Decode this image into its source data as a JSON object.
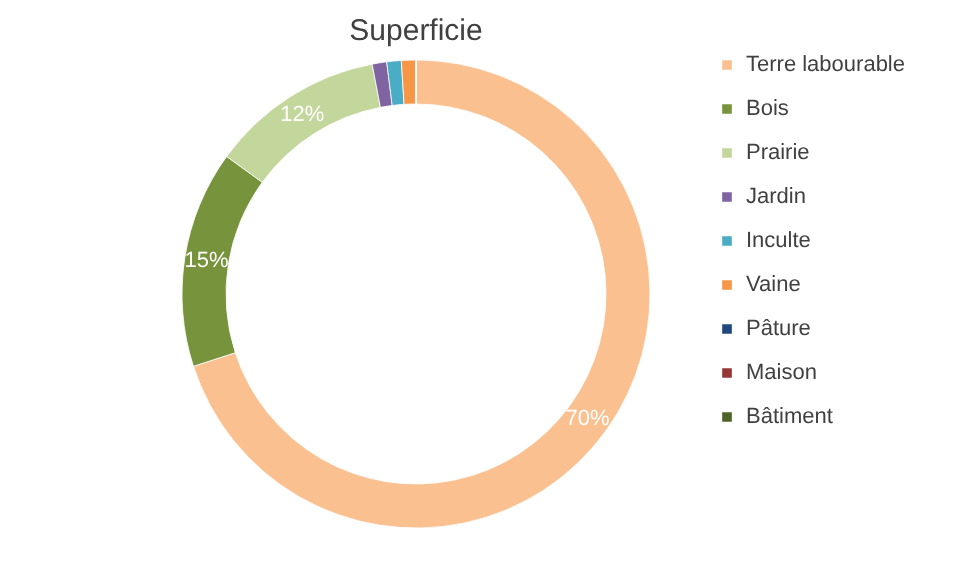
{
  "chart_data": {
    "type": "donut",
    "title": "Superficie",
    "categories": [
      "Terre labourable",
      "Bois",
      "Prairie",
      "Jardin",
      "Inculte",
      "Vaine",
      "Pâture",
      "Maison",
      "Bâtiment"
    ],
    "values": [
      70,
      15,
      12,
      1,
      1,
      1,
      0,
      0,
      0
    ],
    "colors": [
      "#fac090",
      "#77933c",
      "#c3d69b",
      "#8064a2",
      "#4bacc6",
      "#f79646",
      "#1f497d",
      "#953735",
      "#4f6228"
    ],
    "value_labels": [
      "70%",
      "15%",
      "12%",
      null,
      null,
      null,
      null,
      null,
      null
    ],
    "legend": "right"
  }
}
